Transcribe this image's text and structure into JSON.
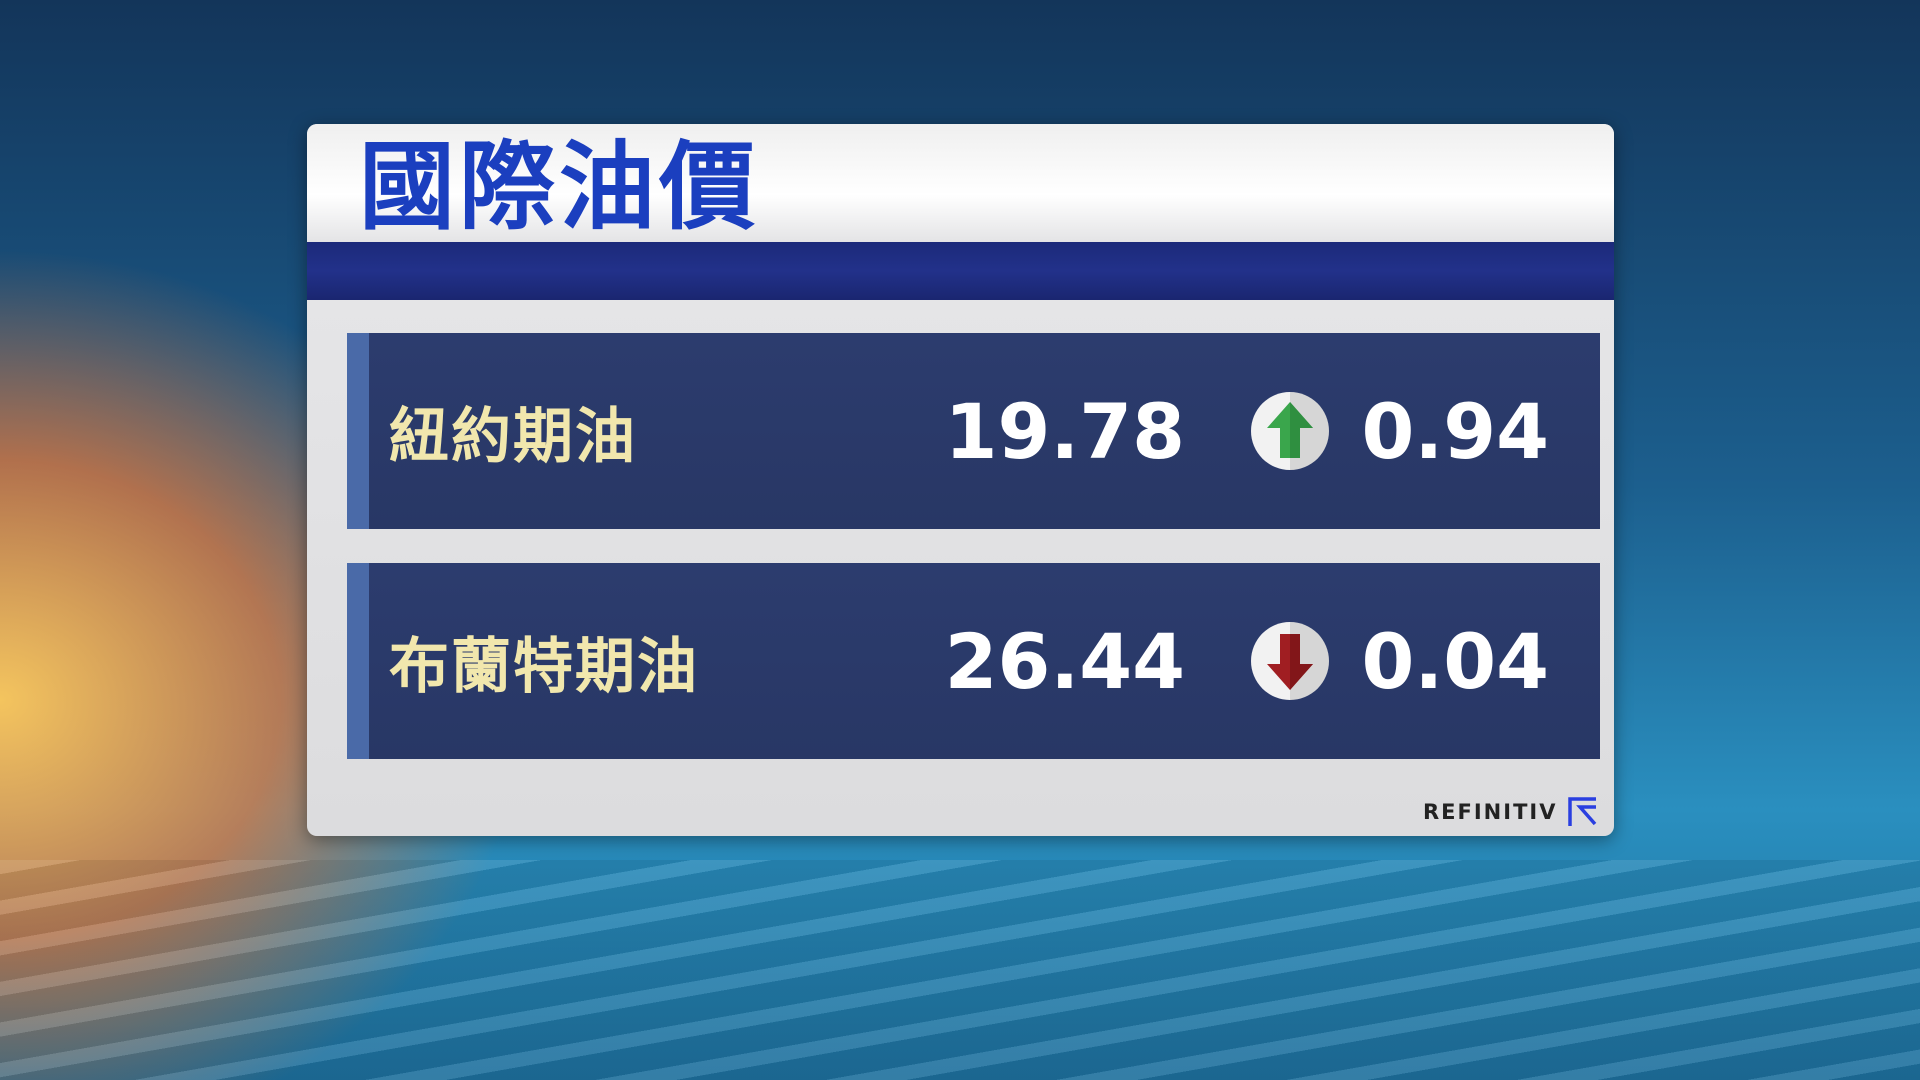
{
  "title": "國際油價",
  "rows": [
    {
      "label": "紐約期油",
      "price": "19.78",
      "direction": "up",
      "change": "0.94",
      "arrow_color": "#3aa64c"
    },
    {
      "label": "布蘭特期油",
      "price": "26.44",
      "direction": "down",
      "change": "0.04",
      "arrow_color": "#a01e22"
    }
  ],
  "brand": {
    "name": "REFINITIV",
    "logo_color": "#2a3fe0"
  },
  "colors": {
    "title": "#1b3fbf",
    "band": "#22318a",
    "row": "#2c3c6e",
    "label": "#f1e7ad"
  }
}
